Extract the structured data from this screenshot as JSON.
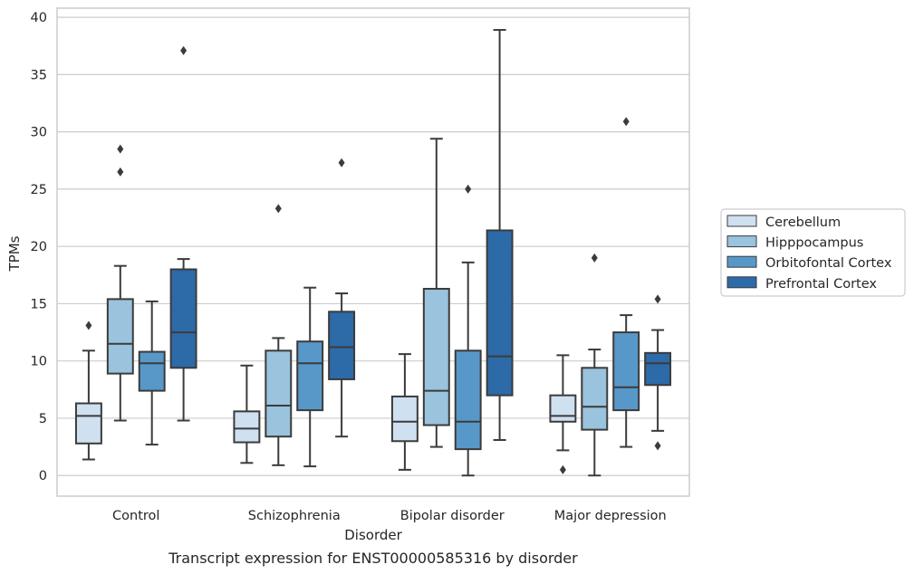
{
  "chart_data": {
    "type": "boxplot",
    "title": "",
    "caption": "Transcript expression for ENST00000585316 by disorder",
    "xlabel": "Disorder",
    "ylabel": "TPMs",
    "ylim": [
      -1.8,
      40.8
    ],
    "yticks": [
      0,
      5,
      10,
      15,
      20,
      25,
      30,
      35,
      40
    ],
    "grid": "horizontal",
    "legend_position": "right",
    "categories": [
      "Control",
      "Schizophrenia",
      "Bipolar disorder",
      "Major depression"
    ],
    "series": [
      {
        "name": "Cerebellum",
        "color": "#cfe0f1",
        "boxes": [
          {
            "whislo": 1.4,
            "q1": 2.8,
            "med": 5.2,
            "q3": 6.3,
            "whishi": 10.9,
            "fliers": [
              13.1
            ]
          },
          {
            "whislo": 1.1,
            "q1": 2.9,
            "med": 4.1,
            "q3": 5.6,
            "whishi": 9.6,
            "fliers": []
          },
          {
            "whislo": 0.5,
            "q1": 3.0,
            "med": 4.7,
            "q3": 6.9,
            "whishi": 10.6,
            "fliers": []
          },
          {
            "whislo": 2.2,
            "q1": 4.7,
            "med": 5.2,
            "q3": 7.0,
            "whishi": 10.5,
            "fliers": [
              0.5
            ]
          }
        ]
      },
      {
        "name": "Hipppocampus",
        "color": "#9ac3dd",
        "boxes": [
          {
            "whislo": 4.8,
            "q1": 8.9,
            "med": 11.5,
            "q3": 15.4,
            "whishi": 18.3,
            "fliers": [
              26.5,
              28.5
            ]
          },
          {
            "whislo": 0.9,
            "q1": 3.4,
            "med": 6.1,
            "q3": 10.9,
            "whishi": 12.0,
            "fliers": [
              23.3
            ]
          },
          {
            "whislo": 2.5,
            "q1": 4.4,
            "med": 7.4,
            "q3": 16.3,
            "whishi": 29.4,
            "fliers": []
          },
          {
            "whislo": 0.0,
            "q1": 4.0,
            "med": 6.0,
            "q3": 9.4,
            "whishi": 11.0,
            "fliers": [
              19.0
            ]
          }
        ]
      },
      {
        "name": "Orbitofontal Cortex",
        "color": "#5898c8",
        "boxes": [
          {
            "whislo": 2.7,
            "q1": 7.4,
            "med": 9.8,
            "q3": 10.8,
            "whishi": 15.2,
            "fliers": []
          },
          {
            "whislo": 0.8,
            "q1": 5.7,
            "med": 9.8,
            "q3": 11.7,
            "whishi": 16.4,
            "fliers": []
          },
          {
            "whislo": 0.0,
            "q1": 2.3,
            "med": 4.7,
            "q3": 10.9,
            "whishi": 18.6,
            "fliers": [
              25.0
            ]
          },
          {
            "whislo": 2.5,
            "q1": 5.7,
            "med": 7.7,
            "q3": 12.5,
            "whishi": 14.0,
            "fliers": [
              30.9
            ]
          }
        ]
      },
      {
        "name": "Prefrontal Cortex",
        "color": "#2c6aa8",
        "boxes": [
          {
            "whislo": 4.8,
            "q1": 9.4,
            "med": 12.5,
            "q3": 18.0,
            "whishi": 18.9,
            "fliers": [
              37.1
            ]
          },
          {
            "whislo": 3.4,
            "q1": 8.4,
            "med": 11.2,
            "q3": 14.3,
            "whishi": 15.9,
            "fliers": [
              27.3
            ]
          },
          {
            "whislo": 3.1,
            "q1": 7.0,
            "med": 10.4,
            "q3": 21.4,
            "whishi": 38.9,
            "fliers": []
          },
          {
            "whislo": 3.9,
            "q1": 7.9,
            "med": 9.8,
            "q3": 10.7,
            "whishi": 12.7,
            "fliers": [
              2.6,
              15.4
            ]
          }
        ]
      }
    ]
  }
}
